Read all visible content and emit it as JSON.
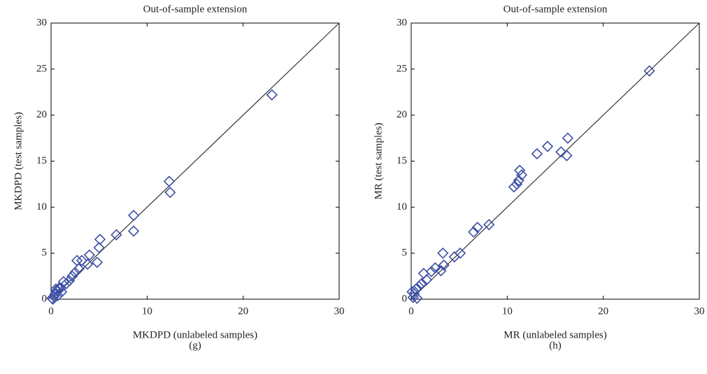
{
  "chart_data": [
    {
      "type": "scatter",
      "title": "Out-of-sample extension",
      "x_label": "MKDPD (unlabeled samples)",
      "y_label": "MKDPD (test samples)",
      "caption": "(g)",
      "color": "#3d4fa6",
      "x": [
        23,
        12.3,
        12.4,
        8.6,
        8.6,
        6.8,
        5.1,
        5,
        4.8,
        4,
        3.8,
        3.2,
        2.9,
        2.7,
        2.5,
        2.2,
        1.9,
        1.6,
        1.3,
        1,
        0.8,
        0.6,
        0.4,
        0.3,
        0.1,
        0.7,
        1.1,
        0.5,
        0.2
      ],
      "y": [
        22.2,
        12.8,
        11.6,
        9.1,
        7.4,
        7,
        6.5,
        5.6,
        4,
        4.8,
        3.8,
        4.2,
        3.3,
        4.2,
        2.9,
        2.5,
        2,
        1.7,
        1.9,
        1.2,
        1.2,
        0.9,
        0.5,
        0.3,
        0.1,
        0.4,
        0.8,
        1.1,
        0
      ],
      "xlim": [
        0,
        30
      ],
      "ylim": [
        0,
        30
      ],
      "xticks": [
        0,
        10,
        20,
        30
      ],
      "yticks": [
        0,
        5,
        10,
        15,
        20,
        25,
        30
      ]
    },
    {
      "type": "scatter",
      "title": "Out-of-sample extension",
      "x_label": "MR (unlabeled samples)",
      "y_label": "MR (test samples)",
      "caption": "(h)",
      "color": "#3d4fa6",
      "x": [
        24.8,
        16.3,
        16.2,
        15.6,
        14.2,
        13.1,
        11.3,
        11.5,
        11,
        10.7,
        11.2,
        8.1,
        6.9,
        6.5,
        5.1,
        4.5,
        3.3,
        3.4,
        3.1,
        2.5,
        2.1,
        1.6,
        1.3,
        1.1,
        0.8,
        0.5,
        0.3,
        0.2,
        0.6,
        0.1
      ],
      "y": [
        24.8,
        17.5,
        15.6,
        16,
        16.6,
        15.8,
        14,
        13.5,
        12.5,
        12.2,
        12.9,
        8.1,
        7.8,
        7.3,
        5,
        4.6,
        5,
        3.7,
        3.1,
        3.4,
        3,
        2.1,
        2.8,
        1.7,
        1.4,
        1.1,
        0.6,
        0.2,
        0.1,
        0.8
      ],
      "xlim": [
        0,
        30
      ],
      "ylim": [
        0,
        30
      ],
      "xticks": [
        0,
        10,
        20,
        30
      ],
      "yticks": [
        0,
        5,
        10,
        15,
        20,
        25,
        30
      ]
    }
  ]
}
